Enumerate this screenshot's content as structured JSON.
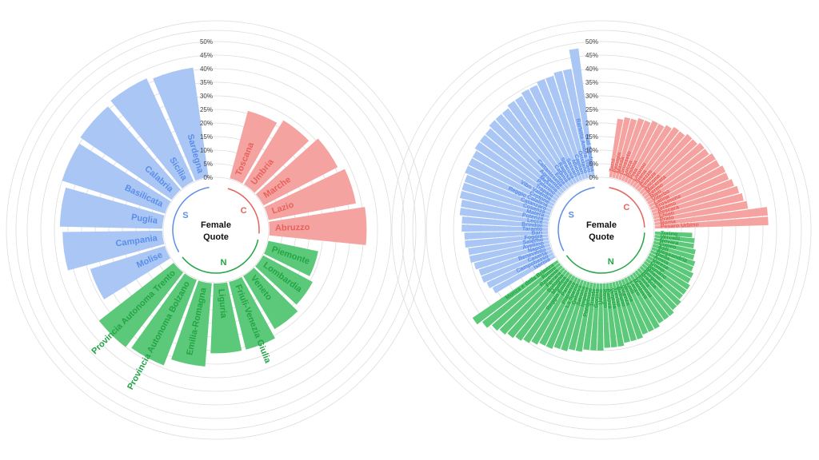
{
  "colors": {
    "north_bar": "#5cc97a",
    "north_text": "#22a544",
    "center_bar": "#f4a3a0",
    "center_text": "#e8625c",
    "south_bar": "#a9c6f5",
    "south_text": "#5b8ee8",
    "grid": "#dddddd"
  },
  "chart_data": [
    {
      "type": "bar",
      "subtype": "circular",
      "title": "Female\nQuote",
      "title_lines": [
        "Female",
        "Quote"
      ],
      "ylim": [
        0,
        50
      ],
      "tick_labels": [
        "0%",
        "5%",
        "10%",
        "15%",
        "20%",
        "25%",
        "30%",
        "35%",
        "40%",
        "45%",
        "50%"
      ],
      "groups": [
        {
          "letter": "C",
          "categories": [
            "Toscana",
            "Umbria",
            "Marche",
            "Lazio",
            "Abruzzo"
          ],
          "values": [
            26,
            28,
            31,
            33,
            36
          ]
        },
        {
          "letter": "N",
          "categories": [
            "Piemonte",
            "Lombardia",
            "Veneto",
            "Friuli-Venezia Giulia",
            "Liguria",
            "Emilia-Romagna",
            "Provincia Autonoma Bolzano",
            "Provincia Autonoma Trento"
          ],
          "values": [
            19,
            21,
            23,
            26,
            26,
            31,
            34,
            35
          ]
        },
        {
          "letter": "S",
          "categories": [
            "Molise",
            "Campania",
            "Puglia",
            "Basilicata",
            "Calabria",
            "Sicilia",
            "Sardegna"
          ],
          "values": [
            29,
            37,
            38,
            40,
            41,
            42,
            41
          ]
        }
      ]
    },
    {
      "type": "bar",
      "subtype": "circular",
      "title": "Female\nQuote",
      "title_lines": [
        "Female",
        "Quote"
      ],
      "ylim": [
        0,
        50
      ],
      "tick_labels": [
        "0%",
        "5%",
        "10%",
        "15%",
        "20%",
        "25%",
        "30%",
        "35%",
        "40%",
        "45%",
        "50%"
      ],
      "groups": [
        {
          "letter": "C",
          "categories": [
            "Terni",
            "Perugia",
            "Massa",
            "Grosseto",
            "Lucca",
            "Pistoia",
            "Pisa",
            "Livorno",
            "Siena",
            "Arezzo",
            "Firenze",
            "Ancona",
            "Macerata",
            "Fermo",
            "Rieti",
            "Viterbo",
            "Latina",
            "Frosinone",
            "Teramo",
            "Pescara",
            "Chieti",
            "Prato",
            "Roma",
            "Pesaro Urbino"
          ],
          "values": [
            22,
            23,
            23,
            24,
            24,
            25,
            25,
            26,
            27,
            27,
            28,
            28,
            29,
            29,
            30,
            30,
            31,
            31,
            32,
            33,
            34,
            35,
            42,
            42
          ]
        },
        {
          "letter": "N",
          "categories": [
            "Torino",
            "Vercelli",
            "Novara",
            "Cuneo",
            "Asti",
            "Alessandria",
            "Biella",
            "Aosta",
            "Varese",
            "Como",
            "Sondrio",
            "Milano",
            "Bergamo",
            "Brescia",
            "Pavia",
            "Cremona",
            "Mantova",
            "Lecco",
            "Lodi",
            "Verona",
            "Vicenza",
            "Belluno",
            "Treviso",
            "Venezia",
            "Padova",
            "Rovigo",
            "Udine",
            "Gorizia",
            "Trieste",
            "Pordenone",
            "Imperia",
            "Savona",
            "Genova",
            "La Spezia",
            "Piacenza",
            "Parma",
            "Reggio Emilia",
            "Modena",
            "Bologna",
            "Ferrara",
            "Ravenna",
            "Rimini",
            "Monza e della Brianza"
          ],
          "values": [
            14,
            15,
            15,
            16,
            16,
            17,
            17,
            18,
            18,
            19,
            19,
            19,
            20,
            20,
            21,
            21,
            21,
            22,
            22,
            22,
            23,
            23,
            23,
            24,
            24,
            24,
            25,
            25,
            25,
            26,
            26,
            27,
            27,
            28,
            28,
            29,
            30,
            31,
            32,
            33,
            34,
            36,
            38
          ]
        },
        {
          "letter": "S",
          "categories": [
            "Isernia",
            "Campobasso",
            "Caserta",
            "Benevento",
            "Napoli",
            "Avellino",
            "Salerno",
            "Foggia",
            "Bari",
            "Taranto",
            "Brindisi",
            "Lecce",
            "Potenza",
            "Matera",
            "Cosenza",
            "Catanzaro",
            "Reggio Calabria",
            "Crotone",
            "Vibo Valentia",
            "Trapani",
            "Palermo",
            "Messina",
            "Agrigento",
            "Caltanissetta",
            "Enna",
            "Catania",
            "Ragusa",
            "Siracusa",
            "Sassari",
            "Nuoro",
            "Cagliari",
            "Oristano",
            "Barletta Andria Trani",
            "Sud Sardegna"
          ],
          "values": [
            26,
            27,
            28,
            28,
            29,
            30,
            30,
            31,
            31,
            32,
            32,
            33,
            33,
            34,
            34,
            34,
            35,
            35,
            35,
            36,
            36,
            36,
            37,
            37,
            37,
            38,
            38,
            39,
            39,
            40,
            40,
            41,
            41,
            48
          ]
        }
      ]
    }
  ]
}
